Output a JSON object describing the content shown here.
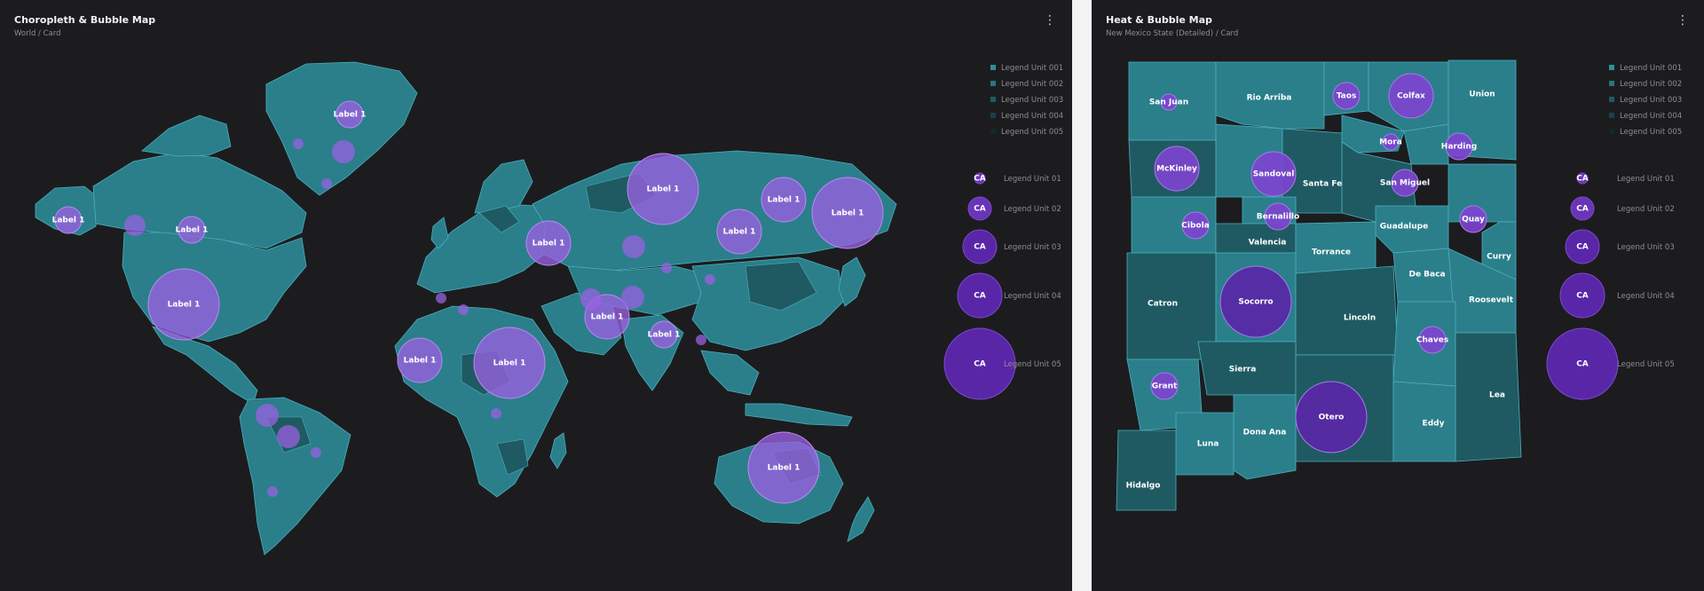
{
  "colors": {
    "card_bg": "#1c1c1f",
    "page_gap": "#f3f3f4",
    "land": "#2a7f8b",
    "land_dark": "#1f5a62",
    "land_stroke": "#4bb0bd",
    "bubble_light": "#9a60e0",
    "bubble_dark": "#5a26a8",
    "choropleth_scale": [
      "#2f8e9b",
      "#25767f",
      "#1d5c63",
      "#174247",
      "#12292c"
    ]
  },
  "world_card": {
    "title": "Choropleth & Bubble Map",
    "subtitle": "World / Card",
    "menu_icon": "⋮",
    "choropleth_legend": [
      "Legend Unit 001",
      "Legend Unit 002",
      "Legend Unit 003",
      "Legend Unit 004",
      "Legend Unit 005"
    ],
    "bubble_legend": [
      {
        "label": "Legend Unit 01",
        "code": "CA"
      },
      {
        "label": "Legend Unit 02",
        "code": "CA"
      },
      {
        "label": "Legend Unit 03",
        "code": "CA"
      },
      {
        "label": "Legend Unit 04",
        "code": "CA"
      },
      {
        "label": "Legend Unit 05",
        "code": "CA"
      }
    ],
    "bubbles": [
      {
        "label": "Label 1",
        "place": "Alaska",
        "size": 2
      },
      {
        "label": "Label 1",
        "place": "Western Canada",
        "size": 2
      },
      {
        "label": "Label 1",
        "place": "United States",
        "size": 5
      },
      {
        "label": "Label 1",
        "place": "Greenland",
        "size": 2
      },
      {
        "label": "Label 1",
        "place": "West Africa",
        "size": 3
      },
      {
        "label": "Label 1",
        "place": "Central Africa",
        "size": 5
      },
      {
        "label": "Label 1",
        "place": "Western Russia",
        "size": 3
      },
      {
        "label": "Label 1",
        "place": "Central Russia",
        "size": 5
      },
      {
        "label": "Label 1",
        "place": "Siberia",
        "size": 3
      },
      {
        "label": "Label 1",
        "place": "Far East Russia",
        "size": 3
      },
      {
        "label": "Label 1",
        "place": "Kamchatka",
        "size": 5
      },
      {
        "label": "Label 1",
        "place": "Central Asia",
        "size": 3
      },
      {
        "label": "Label 1",
        "place": "India",
        "size": 2
      },
      {
        "label": "Label 1",
        "place": "Australia",
        "size": 5
      }
    ]
  },
  "nm_card": {
    "title": "Heat & Bubble Map",
    "subtitle": "New Mexico State (Detailed) / Card",
    "menu_icon": "⋮",
    "choropleth_legend": [
      "Legend Unit 001",
      "Legend Unit 002",
      "Legend Unit 003",
      "Legend Unit 004",
      "Legend Unit 005"
    ],
    "bubble_legend": [
      {
        "label": "Legend Unit 01",
        "code": "CA"
      },
      {
        "label": "Legend Unit 02",
        "code": "CA"
      },
      {
        "label": "Legend Unit 03",
        "code": "CA"
      },
      {
        "label": "Legend Unit 04",
        "code": "CA"
      },
      {
        "label": "Legend Unit 05",
        "code": "CA"
      }
    ],
    "counties": [
      {
        "name": "San Juan",
        "bubble": 1
      },
      {
        "name": "Rio Arriba",
        "bubble": 0
      },
      {
        "name": "Taos",
        "bubble": 2
      },
      {
        "name": "Colfax",
        "bubble": 3
      },
      {
        "name": "Union",
        "bubble": 0
      },
      {
        "name": "Mora",
        "bubble": 1
      },
      {
        "name": "Harding",
        "bubble": 2
      },
      {
        "name": "McKinley",
        "bubble": 3
      },
      {
        "name": "Sandoval",
        "bubble": 3
      },
      {
        "name": "Santa Fe",
        "bubble": 0
      },
      {
        "name": "San Miguel",
        "bubble": 2
      },
      {
        "name": "Bernalillo",
        "bubble": 2
      },
      {
        "name": "Cibola",
        "bubble": 2
      },
      {
        "name": "Valencia",
        "bubble": 0
      },
      {
        "name": "Guadalupe",
        "bubble": 0
      },
      {
        "name": "Quay",
        "bubble": 2
      },
      {
        "name": "Torrance",
        "bubble": 0
      },
      {
        "name": "Curry",
        "bubble": 0
      },
      {
        "name": "De Baca",
        "bubble": 0
      },
      {
        "name": "Catron",
        "bubble": 0
      },
      {
        "name": "Socorro",
        "bubble": 5
      },
      {
        "name": "Lincoln",
        "bubble": 0
      },
      {
        "name": "Roosevelt",
        "bubble": 0
      },
      {
        "name": "Chaves",
        "bubble": 2
      },
      {
        "name": "Sierra",
        "bubble": 0
      },
      {
        "name": "Grant",
        "bubble": 2
      },
      {
        "name": "Otero",
        "bubble": 5
      },
      {
        "name": "Lea",
        "bubble": 0
      },
      {
        "name": "Dona Ana",
        "bubble": 0
      },
      {
        "name": "Eddy",
        "bubble": 0
      },
      {
        "name": "Luna",
        "bubble": 0
      },
      {
        "name": "Hidalgo",
        "bubble": 0
      }
    ]
  }
}
